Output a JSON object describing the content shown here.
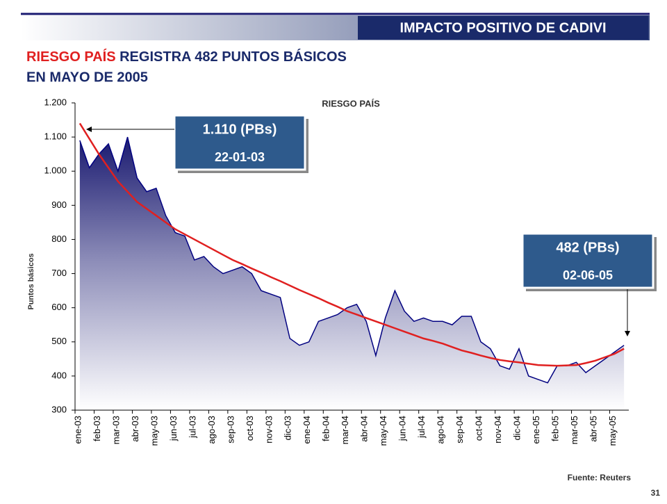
{
  "header": "IMPACTO POSITIVO DE CADIVI",
  "headline": [
    "RIESGO PAÍS",
    "REGISTRA 482 PUNTOS BÁSICOS",
    "EN MAYO DE 2005"
  ],
  "source": "Fuente: Reuters",
  "page_number": "31",
  "chart_data": {
    "type": "area-line",
    "title": "RIESGO PAÍS",
    "ylabel": "Puntos básicos",
    "categories": [
      "ene-03",
      null,
      "feb-03",
      null,
      "mar-03",
      null,
      "abr-03",
      null,
      "may-03",
      null,
      "jun-03",
      null,
      "jul-03",
      null,
      "ago-03",
      null,
      "sep-03",
      null,
      "oct-03",
      null,
      "nov-03",
      null,
      "dic-03",
      null,
      "ene-04",
      null,
      "feb-04",
      null,
      "mar-04",
      null,
      "abr-04",
      null,
      "may-04",
      null,
      "jun-04",
      null,
      "jul-04",
      null,
      "ago-04",
      null,
      "sep-04",
      null,
      "oct-04",
      null,
      "nov-04",
      null,
      "dic-04",
      null,
      "ene-05",
      null,
      "feb-05",
      null,
      "mar-05",
      null,
      "abr-05",
      null,
      "may-05",
      null
    ],
    "series": [
      {
        "color": "#000080",
        "values": [
          1090,
          1010,
          1050,
          1080,
          1000,
          1100,
          980,
          940,
          950,
          870,
          820,
          810,
          740,
          750,
          720,
          700,
          710,
          720,
          700,
          650,
          640,
          630,
          510,
          490,
          500,
          560,
          570,
          580,
          600,
          610,
          560,
          460,
          570,
          650,
          590,
          560,
          570,
          560,
          560,
          550,
          575,
          575,
          500,
          480,
          430,
          420,
          480,
          400,
          390,
          380,
          430,
          430,
          440,
          410,
          430,
          450,
          470,
          490
        ]
      },
      {
        "color": "#e02020",
        "values": [
          1140,
          1095,
          1050,
          1010,
          970,
          940,
          910,
          890,
          870,
          850,
          830,
          815,
          800,
          785,
          770,
          755,
          740,
          728,
          715,
          703,
          690,
          678,
          665,
          652,
          640,
          628,
          615,
          603,
          590,
          580,
          570,
          560,
          550,
          540,
          530,
          520,
          510,
          503,
          495,
          485,
          475,
          468,
          460,
          453,
          447,
          443,
          440,
          436,
          432,
          431,
          430,
          431,
          432,
          438,
          445,
          455,
          465,
          480
        ]
      }
    ],
    "ylim": [
      300,
      1200
    ],
    "yticks": [
      300,
      400,
      500,
      600,
      700,
      800,
      900,
      {
        "value": 1000,
        "label": "1.000"
      },
      {
        "value": 1100,
        "label": "1.100"
      },
      {
        "value": 1200,
        "label": "1.200"
      }
    ],
    "annotations": [
      {
        "value": "1.110 (PBs)",
        "date": "22-01-03"
      },
      {
        "value": "482 (PBs)",
        "date": "02-06-05"
      }
    ]
  }
}
